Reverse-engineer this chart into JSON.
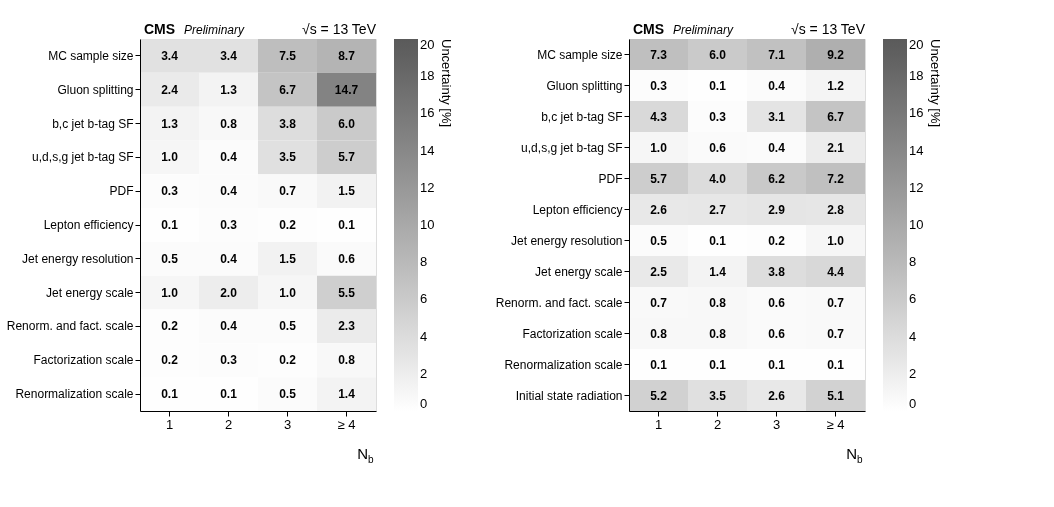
{
  "chart_data": [
    {
      "type": "heatmap",
      "title": "CMS",
      "subtitle": "Preliminary",
      "annotations": [
        "√s = 13 TeV"
      ],
      "xlabel": "N$_{b}$",
      "clabel": "Uncertainty [%]",
      "categories": [
        "1",
        "2",
        "3",
        "≥ 4"
      ],
      "y_categories": [
        "MC sample size",
        "Gluon splitting",
        "b,c jet b-tag SF",
        "u,d,s,g jet b-tag SF",
        "PDF",
        "Lepton efficiency",
        "Jet energy resolution",
        "Jet energy scale",
        "Renorm. and fact. scale",
        "Factorization scale",
        "Renormalization scale"
      ],
      "cells": [
        [
          3.4,
          3.4,
          7.5,
          8.7
        ],
        [
          2.4,
          1.3,
          6.7,
          14.7
        ],
        [
          1.3,
          0.8,
          3.8,
          6.0
        ],
        [
          1.0,
          0.4,
          3.5,
          5.7
        ],
        [
          0.3,
          0.4,
          0.7,
          1.5
        ],
        [
          0.1,
          0.3,
          0.2,
          0.1
        ],
        [
          0.5,
          0.4,
          1.5,
          0.6
        ],
        [
          1.0,
          2.0,
          1.0,
          5.5
        ],
        [
          0.2,
          0.4,
          0.5,
          2.3
        ],
        [
          0.2,
          0.3,
          0.2,
          0.8
        ],
        [
          0.1,
          0.1,
          0.5,
          1.4
        ]
      ],
      "cell_labels": [
        [
          "3.4",
          "3.4",
          "7.5",
          "8.7"
        ],
        [
          "2.4",
          "1.3",
          "6.7",
          "14.7"
        ],
        [
          "1.3",
          "0.8",
          "3.8",
          "6.0"
        ],
        [
          "1.0",
          "0.4",
          "3.5",
          "5.7"
        ],
        [
          "0.3",
          "0.4",
          "0.7",
          "1.5"
        ],
        [
          "0.1",
          "0.3",
          "0.2",
          "0.1"
        ],
        [
          "0.5",
          "0.4",
          "1.5",
          "0.6"
        ],
        [
          "1.0",
          "2.0",
          "1.0",
          "5.5"
        ],
        [
          "0.2",
          "0.4",
          "0.5",
          "2.3"
        ],
        [
          "0.2",
          "0.3",
          "0.2",
          "0.8"
        ],
        [
          "0.1",
          "0.1",
          "0.5",
          "1.4"
        ]
      ],
      "clim": [
        0,
        20
      ],
      "cticks": [
        0,
        2,
        4,
        6,
        8,
        10,
        12,
        14,
        16,
        18,
        20
      ],
      "data_labels": true
    },
    {
      "type": "heatmap",
      "title": "CMS",
      "subtitle": "Preliminary",
      "annotations": [
        "√s = 13 TeV"
      ],
      "xlabel": "N$_{b}$",
      "clabel": "Uncertainty [%]",
      "categories": [
        "1",
        "2",
        "3",
        "≥ 4"
      ],
      "y_categories": [
        "MC sample size",
        "Gluon splitting",
        "b,c jet b-tag SF",
        "u,d,s,g jet b-tag SF",
        "PDF",
        "Lepton efficiency",
        "Jet energy resolution",
        "Jet energy scale",
        "Renorm. and fact. scale",
        "Factorization scale",
        "Renormalization scale",
        "Initial state radiation"
      ],
      "cells": [
        [
          7.3,
          6.0,
          7.1,
          9.2
        ],
        [
          0.3,
          0.1,
          0.4,
          1.2
        ],
        [
          4.3,
          0.3,
          3.1,
          6.7
        ],
        [
          1.0,
          0.6,
          0.4,
          2.1
        ],
        [
          5.7,
          4.0,
          6.2,
          7.2
        ],
        [
          2.6,
          2.7,
          2.9,
          2.8
        ],
        [
          0.5,
          0.1,
          0.2,
          1.0
        ],
        [
          2.5,
          1.4,
          3.8,
          4.4
        ],
        [
          0.7,
          0.8,
          0.6,
          0.7
        ],
        [
          0.8,
          0.8,
          0.6,
          0.7
        ],
        [
          0.1,
          0.1,
          0.1,
          0.1
        ],
        [
          5.2,
          3.5,
          2.6,
          5.1
        ]
      ],
      "cell_labels": [
        [
          "7.3",
          "6.0",
          "7.1",
          "9.2"
        ],
        [
          "0.3",
          "0.1",
          "0.4",
          "1.2"
        ],
        [
          "4.3",
          "0.3",
          "3.1",
          "6.7"
        ],
        [
          "1.0",
          "0.6",
          "0.4",
          "2.1"
        ],
        [
          "5.7",
          "4.0",
          "6.2",
          "7.2"
        ],
        [
          "2.6",
          "2.7",
          "2.9",
          "2.8"
        ],
        [
          "0.5",
          "0.1",
          "0.2",
          "1.0"
        ],
        [
          "2.5",
          "1.4",
          "3.8",
          "4.4"
        ],
        [
          "0.7",
          "0.8",
          "0.6",
          "0.7"
        ],
        [
          "0.8",
          "0.8",
          "0.6",
          "0.7"
        ],
        [
          "0.1",
          "0.1",
          "0.1",
          "0.1"
        ],
        [
          "5.2",
          "3.5",
          "2.6",
          "5.1"
        ]
      ],
      "clim": [
        0,
        20
      ],
      "cticks": [
        0,
        2,
        4,
        6,
        8,
        10,
        12,
        14,
        16,
        18,
        20
      ],
      "data_labels": true
    }
  ]
}
